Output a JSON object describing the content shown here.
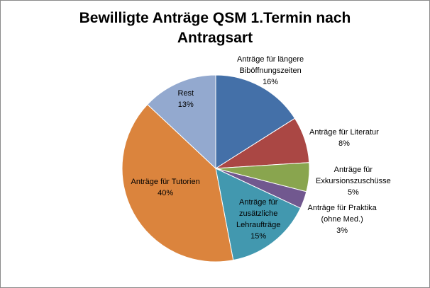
{
  "chart_data": {
    "type": "pie",
    "title_lines": [
      "Bewilligte Anträge QSM 1.Termin nach",
      "Antragsart"
    ],
    "slices": [
      {
        "label_lines": [
          "Anträge für längere",
          "Biböffnungszeiten"
        ],
        "value": 16,
        "value_label": "16%",
        "color": "#4470A8"
      },
      {
        "label_lines": [
          "Anträge für Literatur"
        ],
        "value": 8,
        "value_label": "8%",
        "color": "#AA4744"
      },
      {
        "label_lines": [
          "Anträge für",
          "Exkursionszuschüsse"
        ],
        "value": 5,
        "value_label": "5%",
        "color": "#89A54E"
      },
      {
        "label_lines": [
          "Anträge für Praktika",
          "(ohne Med.)"
        ],
        "value": 3,
        "value_label": "3%",
        "color": "#71588F"
      },
      {
        "label_lines": [
          "Anträge für",
          "zusätzliche",
          "Lehraufträge"
        ],
        "value": 15,
        "value_label": "15%",
        "color": "#4298AF"
      },
      {
        "label_lines": [
          "Anträge für Tutorien"
        ],
        "value": 40,
        "value_label": "40%",
        "color": "#DB843D"
      },
      {
        "label_lines": [
          "Rest"
        ],
        "value": 13,
        "value_label": "13%",
        "color": "#93A9CF"
      }
    ],
    "start_angle": "12 o'clock",
    "direction": "clockwise",
    "legend": "none"
  }
}
